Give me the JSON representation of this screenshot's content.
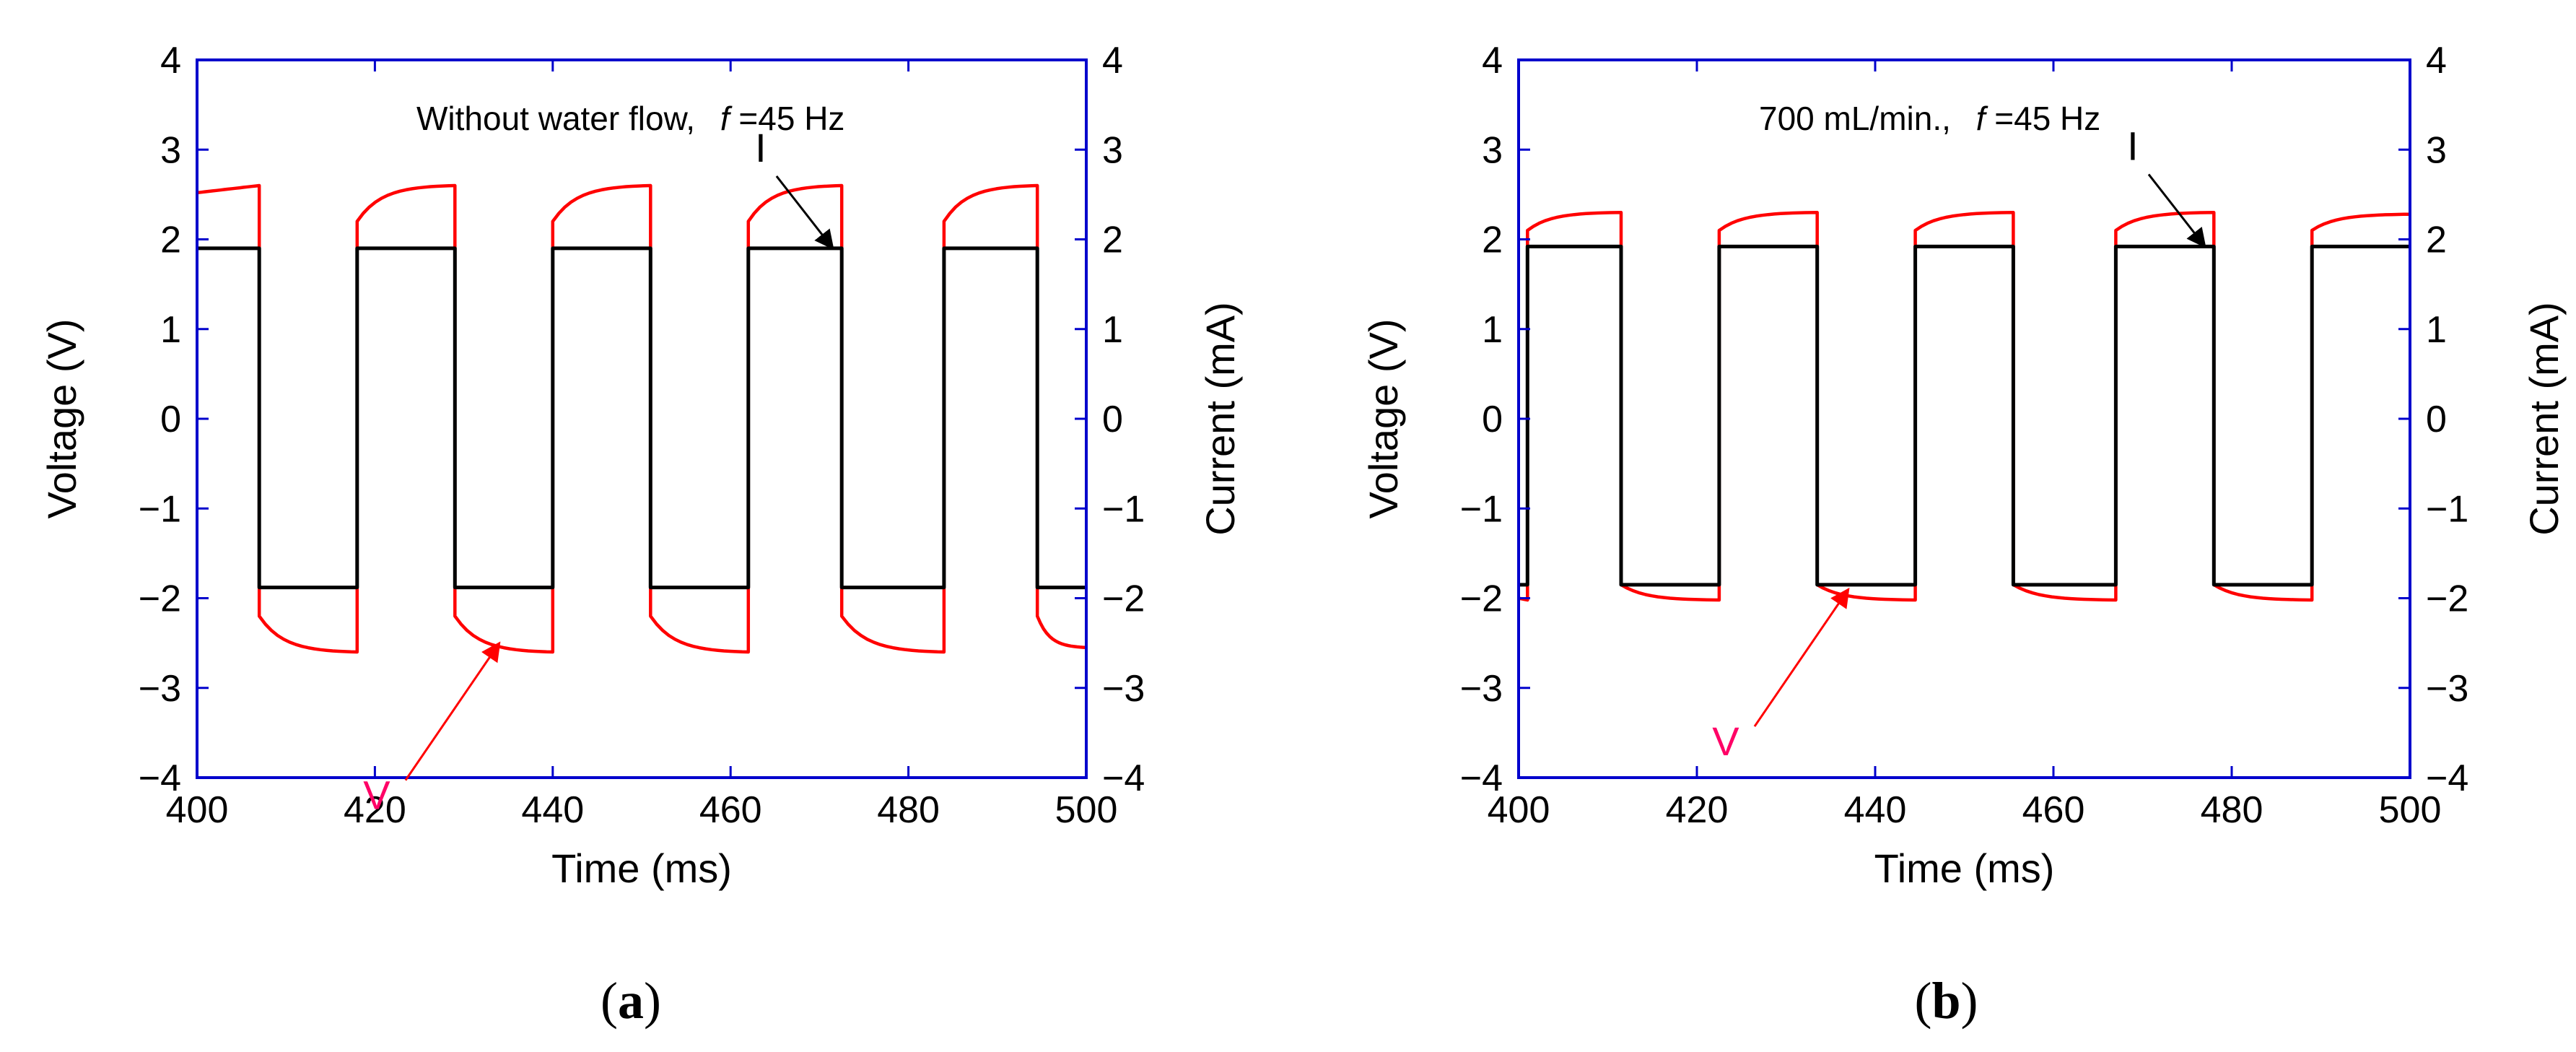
{
  "chart_data": [
    {
      "type": "line",
      "panel_label": "a",
      "annotation": "Without water flow,",
      "annotation_f_symbol": "f",
      "annotation_f_value": "=45 Hz",
      "xlabel": "Time (ms)",
      "ylabel_left": "Voltage (V)",
      "ylabel_right": "Current  (mA)",
      "xlim": [
        400,
        500
      ],
      "ylim": [
        -4,
        4
      ],
      "x_ticks": [
        400,
        420,
        440,
        460,
        480,
        500
      ],
      "x_tick_labels": [
        "400",
        "420",
        "440",
        "460",
        "480",
        "500"
      ],
      "y_ticks": [
        -4,
        -3,
        -2,
        -1,
        0,
        1,
        2,
        3,
        4
      ],
      "y_tick_labels": [
        "−4",
        "−3",
        "−2",
        "−1",
        "0",
        "1",
        "2",
        "3",
        "4"
      ],
      "y2_tick_labels": [
        "−4",
        "−3",
        "−2",
        "−1",
        "0",
        "1",
        "2",
        "3",
        "4"
      ],
      "series": [
        {
          "name": "V",
          "color": "#ff0000",
          "transitions_ms": [
            407,
            418,
            429,
            440,
            451,
            462,
            472.5,
            484,
            494.5
          ],
          "first_level": "high",
          "high_start": 2.2,
          "high_end": 2.6,
          "low_start": -2.2,
          "low_end": -2.6,
          "high_start_pre": 2.52,
          "low_end_post": -2.55
        },
        {
          "name": "I",
          "color": "#000000",
          "transitions_ms": [
            407,
            418,
            429,
            440,
            451,
            462,
            472.5,
            484,
            494.5
          ],
          "first_level": "high",
          "high_level": 1.9,
          "low_level": -1.88
        }
      ],
      "labels": [
        {
          "text": "I",
          "color": "#000000",
          "tip_x": 471.5,
          "tip_y": 1.9
        },
        {
          "text": "V",
          "color": "#ff0066",
          "tip_x": 434,
          "tip_y": -2.5
        }
      ]
    },
    {
      "type": "line",
      "panel_label": "b",
      "annotation": "700 mL/min.,",
      "annotation_f_symbol": "f",
      "annotation_f_value": "=45 Hz",
      "xlabel": "Time (ms)",
      "ylabel_left": "Voltage (V)",
      "ylabel_right": "Current  (mA)",
      "xlim": [
        400,
        500
      ],
      "ylim": [
        -4,
        4
      ],
      "x_ticks": [
        400,
        420,
        440,
        460,
        480,
        500
      ],
      "x_tick_labels": [
        "400",
        "420",
        "440",
        "460",
        "480",
        "500"
      ],
      "y_ticks": [
        -4,
        -3,
        -2,
        -1,
        0,
        1,
        2,
        3,
        4
      ],
      "y_tick_labels": [
        "−4",
        "−3",
        "−2",
        "−1",
        "0",
        "1",
        "2",
        "3",
        "4"
      ],
      "y2_tick_labels": [
        "−4",
        "−3",
        "−2",
        "−1",
        "0",
        "1",
        "2",
        "3",
        "4"
      ],
      "series": [
        {
          "name": "V",
          "color": "#ff0000",
          "transitions_ms": [
            401,
            411.5,
            422.5,
            433.5,
            444.5,
            455.5,
            467,
            478,
            489
          ],
          "first_level": "low",
          "high_start": 2.1,
          "high_end": 2.3,
          "low_start": -1.85,
          "low_end": -2.02,
          "low_start_pre": -2.0,
          "high_end_post": 2.28
        },
        {
          "name": "I",
          "color": "#000000",
          "transitions_ms": [
            401,
            411.5,
            422.5,
            433.5,
            444.5,
            455.5,
            467,
            478,
            489
          ],
          "first_level": "low",
          "high_level": 1.92,
          "low_level": -1.85
        }
      ],
      "labels": [
        {
          "text": "I",
          "color": "#000000",
          "tip_x": 477,
          "tip_y": 1.92
        },
        {
          "text": "V",
          "color": "#ff0066",
          "tip_x": 437,
          "tip_y": -1.9
        }
      ]
    }
  ]
}
